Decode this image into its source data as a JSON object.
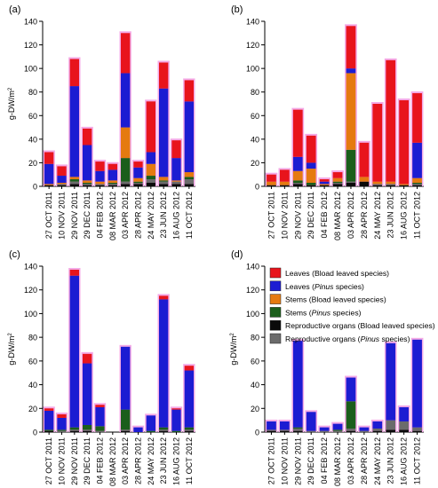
{
  "legend": {
    "entries": [
      {
        "key": "leaves_broad",
        "label": "Leaves (Bload leaved species)",
        "color": "#e8141c"
      },
      {
        "key": "leaves_pinus",
        "label": "Leaves (Pinus species)",
        "color": "#1c1cd2"
      },
      {
        "key": "stems_broad",
        "label": "Stems (Bload leaved species)",
        "color": "#e57a10"
      },
      {
        "key": "stems_pinus",
        "label": "Stems (Pinus species)",
        "color": "#1b5e1b"
      },
      {
        "key": "repro_broad",
        "label": "Reproductive organs (Bload leaved species)",
        "color": "#0a0a0a"
      },
      {
        "key": "repro_pinus",
        "label": "Reproductive organs (Pinus species)",
        "color": "#6b6b6b"
      }
    ],
    "placement": "inside panel (d), top"
  },
  "error_color": "#f4a9e6",
  "chart_data": [
    {
      "panel": "(a)",
      "type": "bar",
      "stacked": true,
      "ylabel": "g-DW/m2",
      "ylim": [
        0,
        140
      ],
      "yticks": [
        0,
        20,
        40,
        60,
        80,
        100,
        120,
        140
      ],
      "categories": [
        "27 OCT 2011",
        "10 NOV 2011",
        "29 NOV 2011",
        "29 DEC 2011",
        "04 FEB 2012",
        "08 MAR 2012",
        "03 APR 2012",
        "28 APR 2012",
        "24 MAY 2012",
        "23 JUN 2012",
        "16 AUG 2012",
        "11 OCT 2012"
      ],
      "series": [
        {
          "key": "repro_broad",
          "values": [
            1,
            1,
            2,
            1,
            1,
            1,
            2,
            2,
            3,
            2,
            2,
            2
          ]
        },
        {
          "key": "repro_pinus",
          "values": [
            0,
            1,
            2,
            1,
            1,
            1,
            2,
            1,
            3,
            2,
            2,
            4
          ]
        },
        {
          "key": "stems_pinus",
          "values": [
            0,
            0,
            2,
            1,
            0,
            1,
            20,
            1,
            3,
            1,
            0,
            2
          ]
        },
        {
          "key": "stems_broad",
          "values": [
            1,
            1,
            2,
            2,
            2,
            2,
            26,
            3,
            10,
            3,
            1,
            4
          ]
        },
        {
          "key": "leaves_pinus",
          "values": [
            17,
            6,
            77,
            30,
            9,
            9,
            46,
            9,
            10,
            75,
            19,
            60
          ]
        },
        {
          "key": "leaves_broad",
          "values": [
            10,
            8,
            23,
            14,
            8,
            5,
            34,
            5,
            43,
            22,
            15,
            18
          ]
        }
      ],
      "totals": [
        29,
        17,
        108,
        49,
        21,
        19,
        130,
        21,
        72,
        105,
        39,
        90
      ]
    },
    {
      "panel": "(b)",
      "type": "bar",
      "stacked": true,
      "ylabel": "",
      "ylim": [
        0,
        140
      ],
      "yticks": [
        0,
        20,
        40,
        60,
        80,
        100,
        120,
        140
      ],
      "categories": [
        "27 OCT 2011",
        "10 NOV 2011",
        "29 NOV 2011",
        "29 DEC 2011",
        "04 FEB 2012",
        "08 MAR 2012",
        "03 APR 2012",
        "28 APR 2012",
        "24 MAY 2012",
        "23 JUN 2012",
        "16 AUG 2012",
        "11 OCT 2012"
      ],
      "series": [
        {
          "key": "repro_broad",
          "values": [
            1,
            1,
            2,
            1,
            1,
            2,
            3,
            4,
            1,
            1,
            1,
            1
          ]
        },
        {
          "key": "repro_pinus",
          "values": [
            0,
            0,
            1,
            0,
            0,
            1,
            1,
            0,
            1,
            1,
            0,
            1
          ]
        },
        {
          "key": "stems_pinus",
          "values": [
            0,
            0,
            2,
            2,
            0,
            1,
            27,
            0,
            0,
            0,
            0,
            1
          ]
        },
        {
          "key": "stems_broad",
          "values": [
            3,
            3,
            8,
            12,
            1,
            3,
            65,
            4,
            2,
            2,
            1,
            4
          ]
        },
        {
          "key": "leaves_pinus",
          "values": [
            0,
            0,
            12,
            5,
            2,
            0,
            4,
            0,
            0,
            0,
            0,
            30
          ]
        },
        {
          "key": "leaves_broad",
          "values": [
            6,
            10,
            40,
            23,
            2,
            5,
            36,
            29,
            66,
            103,
            71,
            42
          ]
        }
      ],
      "totals": [
        10,
        14,
        65,
        43,
        6,
        12,
        136,
        37,
        70,
        107,
        73,
        79
      ]
    },
    {
      "panel": "(c)",
      "type": "bar",
      "stacked": true,
      "ylabel": "g-DW/m2",
      "ylim": [
        0,
        140
      ],
      "yticks": [
        0,
        20,
        40,
        60,
        80,
        100,
        120,
        140
      ],
      "categories": [
        "27 OCT 2011",
        "10 NOV 2011",
        "29 NOV 2011",
        "29 DEC 2011",
        "04 FEB 2012",
        "08 MAR 2012",
        "03 APR 2012",
        "28 APR 2012",
        "24 MAY 2012",
        "23 JUN 2012",
        "16 AUG 2012",
        "11 OCT 2012"
      ],
      "series": [
        {
          "key": "repro_broad",
          "values": [
            1,
            0,
            1,
            1,
            0,
            0,
            1,
            0,
            0,
            1,
            0,
            1
          ]
        },
        {
          "key": "repro_pinus",
          "values": [
            0,
            1,
            1,
            1,
            1,
            0,
            1,
            0,
            0,
            1,
            0,
            1
          ]
        },
        {
          "key": "stems_pinus",
          "values": [
            1,
            1,
            2,
            4,
            4,
            0,
            17,
            0,
            1,
            2,
            1,
            2
          ]
        },
        {
          "key": "stems_broad",
          "values": [
            0,
            0,
            0,
            0,
            0,
            0,
            0,
            0,
            0,
            0,
            0,
            0
          ]
        },
        {
          "key": "leaves_pinus",
          "values": [
            16,
            10,
            128,
            52,
            16,
            0,
            53,
            4,
            13,
            108,
            18,
            48
          ]
        },
        {
          "key": "leaves_broad",
          "values": [
            2,
            3,
            5,
            8,
            2,
            0,
            0,
            0,
            0,
            3,
            1,
            4
          ]
        }
      ],
      "totals": [
        20,
        15,
        137,
        66,
        23,
        0,
        72,
        4,
        14,
        115,
        20,
        56
      ]
    },
    {
      "panel": "(d)",
      "type": "bar",
      "stacked": true,
      "ylabel": "g-DW/m2",
      "ylim": [
        0,
        140
      ],
      "yticks": [
        0,
        20,
        40,
        60,
        80,
        100,
        120,
        140
      ],
      "categories": [
        "27 OCT 2011",
        "10 NOV 2011",
        "29 NOV 2011",
        "29 DEC 2011",
        "04 FEB 2012",
        "08 MAR 2012",
        "03 APR 2012",
        "28 APR 2012",
        "24 MAY 2012",
        "23 JUN 2012",
        "16 AUG 2012",
        "11 OCT 2012"
      ],
      "series": [
        {
          "key": "repro_broad",
          "values": [
            1,
            1,
            1,
            0,
            0,
            0,
            1,
            0,
            1,
            2,
            2,
            1
          ]
        },
        {
          "key": "repro_pinus",
          "values": [
            1,
            1,
            2,
            1,
            1,
            1,
            2,
            1,
            2,
            8,
            7,
            3
          ]
        },
        {
          "key": "stems_pinus",
          "values": [
            0,
            0,
            1,
            0,
            0,
            1,
            23,
            0,
            0,
            0,
            0,
            0
          ]
        },
        {
          "key": "stems_broad",
          "values": [
            0,
            0,
            0,
            0,
            0,
            0,
            0,
            0,
            0,
            0,
            0,
            0
          ]
        },
        {
          "key": "leaves_pinus",
          "values": [
            7,
            7,
            73,
            16,
            3,
            5,
            20,
            3,
            6,
            65,
            12,
            74
          ]
        },
        {
          "key": "leaves_broad",
          "values": [
            0,
            0,
            0,
            0,
            0,
            0,
            0,
            0,
            0,
            0,
            0,
            0
          ]
        }
      ],
      "totals": [
        9,
        9,
        77,
        17,
        4,
        7,
        46,
        4,
        9,
        75,
        21,
        78
      ]
    }
  ]
}
